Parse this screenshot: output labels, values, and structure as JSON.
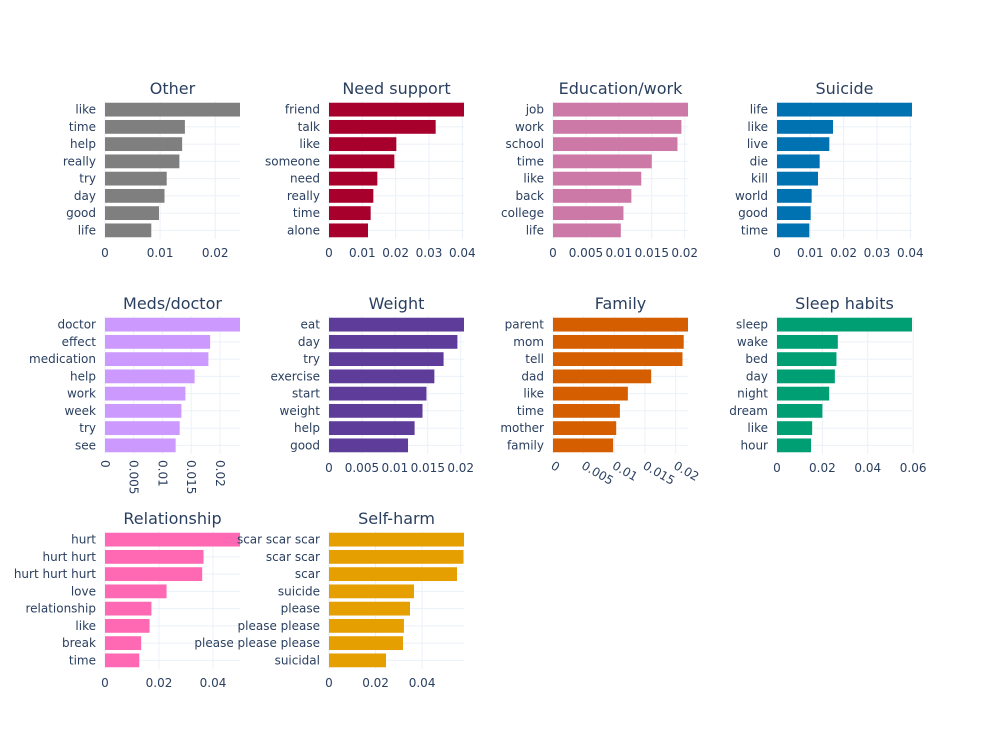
{
  "chart_data": [
    {
      "type": "bar",
      "orientation": "horizontal",
      "title": "Other",
      "color": "#7f7f7f",
      "categories": [
        "like",
        "time",
        "help",
        "really",
        "try",
        "day",
        "good",
        "life"
      ],
      "values": [
        0.0245,
        0.0145,
        0.014,
        0.0135,
        0.0112,
        0.0108,
        0.0098,
        0.0084
      ],
      "xlim": [
        0,
        0.0245
      ],
      "ticks": [
        {
          "value": 0,
          "label": "0"
        },
        {
          "value": 0.01,
          "label": "0.01"
        },
        {
          "value": 0.02,
          "label": "0.02"
        }
      ]
    },
    {
      "type": "bar",
      "orientation": "horizontal",
      "title": "Need support",
      "color": "#a8002c",
      "categories": [
        "friend",
        "talk",
        "like",
        "someone",
        "need",
        "really",
        "time",
        "alone"
      ],
      "values": [
        0.0405,
        0.032,
        0.0202,
        0.0196,
        0.0145,
        0.0133,
        0.0125,
        0.0117
      ],
      "xlim": [
        0,
        0.0405
      ],
      "ticks": [
        {
          "value": 0,
          "label": "0"
        },
        {
          "value": 0.01,
          "label": "0.01"
        },
        {
          "value": 0.02,
          "label": "0.02"
        },
        {
          "value": 0.03,
          "label": "0.03"
        },
        {
          "value": 0.04,
          "label": "0.04"
        }
      ]
    },
    {
      "type": "bar",
      "orientation": "horizontal",
      "title": "Education/work",
      "color": "#cc79a7",
      "categories": [
        "job",
        "work",
        "school",
        "time",
        "like",
        "back",
        "college",
        "life"
      ],
      "values": [
        0.0205,
        0.0195,
        0.0189,
        0.015,
        0.0134,
        0.0119,
        0.0107,
        0.0103
      ],
      "xlim": [
        0,
        0.0205
      ],
      "ticks": [
        {
          "value": 0,
          "label": "0"
        },
        {
          "value": 0.005,
          "label": "0.005"
        },
        {
          "value": 0.01,
          "label": "0.01"
        },
        {
          "value": 0.015,
          "label": "0.015"
        },
        {
          "value": 0.02,
          "label": "0.02"
        }
      ]
    },
    {
      "type": "bar",
      "orientation": "horizontal",
      "title": "Suicide",
      "color": "#0072b2",
      "categories": [
        "life",
        "like",
        "live",
        "die",
        "kill",
        "world",
        "good",
        "time"
      ],
      "values": [
        0.0405,
        0.0168,
        0.0157,
        0.0128,
        0.0123,
        0.0104,
        0.0101,
        0.0097
      ],
      "xlim": [
        0,
        0.0405
      ],
      "ticks": [
        {
          "value": 0,
          "label": "0"
        },
        {
          "value": 0.01,
          "label": "0.01"
        },
        {
          "value": 0.02,
          "label": "0.02"
        },
        {
          "value": 0.03,
          "label": "0.03"
        },
        {
          "value": 0.04,
          "label": "0.04"
        }
      ]
    },
    {
      "type": "bar",
      "orientation": "horizontal",
      "title": "Meds/doctor",
      "color": "#cc99ff",
      "categories": [
        "doctor",
        "effect",
        "medication",
        "help",
        "work",
        "week",
        "try",
        "see"
      ],
      "values": [
        0.0235,
        0.0183,
        0.018,
        0.0156,
        0.014,
        0.0133,
        0.013,
        0.0123
      ],
      "xlim": [
        0,
        0.0235
      ],
      "tickAngle": 90,
      "ticks": [
        {
          "value": 0,
          "label": "0"
        },
        {
          "value": 0.005,
          "label": "0.005"
        },
        {
          "value": 0.01,
          "label": "0.01"
        },
        {
          "value": 0.015,
          "label": "0.015"
        },
        {
          "value": 0.02,
          "label": "0.02"
        }
      ]
    },
    {
      "type": "bar",
      "orientation": "horizontal",
      "title": "Weight",
      "color": "#5e3c99",
      "categories": [
        "eat",
        "day",
        "try",
        "exercise",
        "start",
        "weight",
        "help",
        "good"
      ],
      "values": [
        0.0205,
        0.0195,
        0.0174,
        0.016,
        0.0148,
        0.0142,
        0.013,
        0.012
      ],
      "xlim": [
        0,
        0.0205
      ],
      "ticks": [
        {
          "value": 0,
          "label": "0"
        },
        {
          "value": 0.005,
          "label": "0.005"
        },
        {
          "value": 0.01,
          "label": "0.01"
        },
        {
          "value": 0.015,
          "label": "0.015"
        },
        {
          "value": 0.02,
          "label": "0.02"
        }
      ]
    },
    {
      "type": "bar",
      "orientation": "horizontal",
      "title": "Family",
      "color": "#d55e00",
      "categories": [
        "parent",
        "mom",
        "tell",
        "dad",
        "like",
        "time",
        "mother",
        "family"
      ],
      "values": [
        0.022,
        0.0213,
        0.0211,
        0.016,
        0.0122,
        0.0109,
        0.0103,
        0.0098
      ],
      "xlim": [
        0,
        0.022
      ],
      "tickAngle": 30,
      "ticks": [
        {
          "value": 0,
          "label": "0"
        },
        {
          "value": 0.005,
          "label": "0.005"
        },
        {
          "value": 0.01,
          "label": "0.01"
        },
        {
          "value": 0.015,
          "label": "0.015"
        },
        {
          "value": 0.02,
          "label": "0.02"
        }
      ]
    },
    {
      "type": "bar",
      "orientation": "horizontal",
      "title": "Sleep habits",
      "color": "#009e73",
      "categories": [
        "sleep",
        "wake",
        "bed",
        "day",
        "night",
        "dream",
        "like",
        "hour"
      ],
      "values": [
        0.0595,
        0.0268,
        0.0262,
        0.0255,
        0.023,
        0.02,
        0.0155,
        0.015
      ],
      "xlim": [
        0,
        0.0595
      ],
      "ticks": [
        {
          "value": 0,
          "label": "0"
        },
        {
          "value": 0.02,
          "label": "0.02"
        },
        {
          "value": 0.04,
          "label": "0.04"
        },
        {
          "value": 0.06,
          "label": "0.06"
        }
      ]
    },
    {
      "type": "bar",
      "orientation": "horizontal",
      "title": "Relationship",
      "color": "#ff69b4",
      "categories": [
        "hurt",
        "hurt hurt",
        "hurt hurt hurt",
        "love",
        "relationship",
        "like",
        "break",
        "time"
      ],
      "values": [
        0.05,
        0.0365,
        0.036,
        0.0228,
        0.0172,
        0.0165,
        0.0134,
        0.0127
      ],
      "xlim": [
        0,
        0.05
      ],
      "ticks": [
        {
          "value": 0,
          "label": "0"
        },
        {
          "value": 0.02,
          "label": "0.02"
        },
        {
          "value": 0.04,
          "label": "0.04"
        }
      ]
    },
    {
      "type": "bar",
      "orientation": "horizontal",
      "title": "Self-harm",
      "color": "#e69f00",
      "categories": [
        "scar scar scar",
        "scar scar",
        "scar",
        "suicide",
        "please",
        "please please",
        "please please please",
        "suicidal"
      ],
      "values": [
        0.058,
        0.0578,
        0.055,
        0.0365,
        0.0348,
        0.0322,
        0.0318,
        0.0245
      ],
      "xlim": [
        0,
        0.058
      ],
      "ticks": [
        {
          "value": 0,
          "label": "0"
        },
        {
          "value": 0.02,
          "label": "0.02"
        },
        {
          "value": 0.04,
          "label": "0.04"
        }
      ]
    }
  ]
}
